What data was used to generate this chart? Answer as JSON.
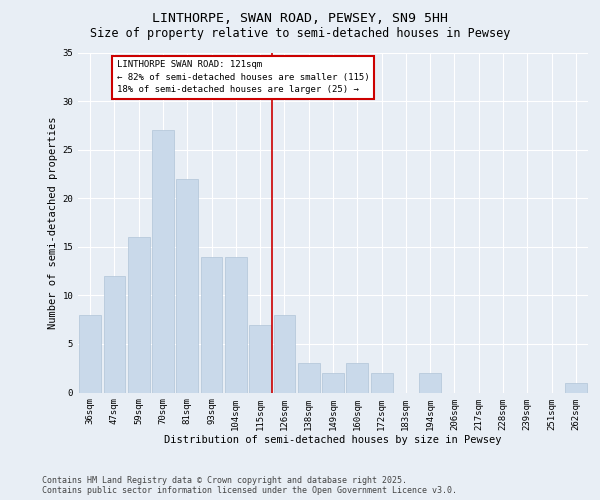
{
  "title": "LINTHORPE, SWAN ROAD, PEWSEY, SN9 5HH",
  "subtitle": "Size of property relative to semi-detached houses in Pewsey",
  "xlabel": "Distribution of semi-detached houses by size in Pewsey",
  "ylabel": "Number of semi-detached properties",
  "bar_labels": [
    "36sqm",
    "47sqm",
    "59sqm",
    "70sqm",
    "81sqm",
    "93sqm",
    "104sqm",
    "115sqm",
    "126sqm",
    "138sqm",
    "149sqm",
    "160sqm",
    "172sqm",
    "183sqm",
    "194sqm",
    "206sqm",
    "217sqm",
    "228sqm",
    "239sqm",
    "251sqm",
    "262sqm"
  ],
  "bar_values": [
    8,
    12,
    16,
    27,
    22,
    14,
    14,
    7,
    8,
    3,
    2,
    3,
    2,
    0,
    2,
    0,
    0,
    0,
    0,
    0,
    1
  ],
  "bar_color": "#c9d9ea",
  "bar_edgecolor": "#b0c4d8",
  "vline_x_index": 8,
  "vline_color": "#cc0000",
  "annotation_title": "LINTHORPE SWAN ROAD: 121sqm",
  "annotation_line1": "← 82% of semi-detached houses are smaller (115)",
  "annotation_line2": "18% of semi-detached houses are larger (25) →",
  "annotation_box_color": "#cc0000",
  "annotation_fill": "#ffffff",
  "ylim": [
    0,
    35
  ],
  "yticks": [
    0,
    5,
    10,
    15,
    20,
    25,
    30,
    35
  ],
  "footer_line1": "Contains HM Land Registry data © Crown copyright and database right 2025.",
  "footer_line2": "Contains public sector information licensed under the Open Government Licence v3.0.",
  "background_color": "#e8eef5",
  "plot_bg_color": "#e8eef5",
  "grid_color": "#ffffff",
  "title_fontsize": 9.5,
  "subtitle_fontsize": 8.5,
  "axis_label_fontsize": 7.5,
  "tick_fontsize": 6.5,
  "annot_fontsize": 6.5,
  "footer_fontsize": 6.0
}
